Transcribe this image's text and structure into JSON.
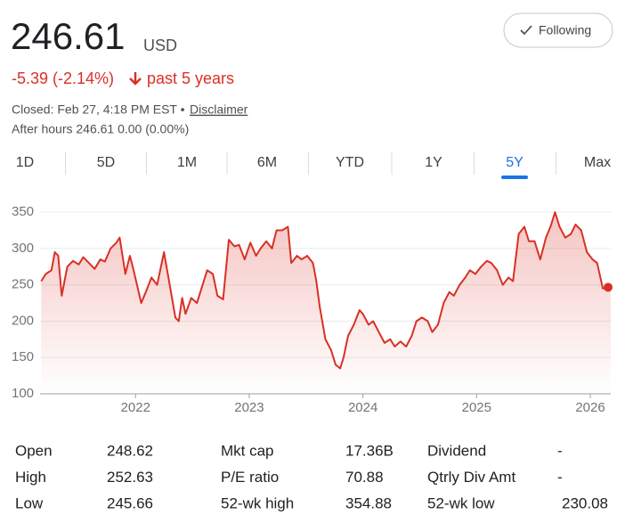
{
  "header": {
    "price": "246.61",
    "currency": "USD",
    "change": "-5.39 (-2.14%)",
    "period": "past 5 years",
    "closed": "Closed: Feb 27, 4:18 PM EST •",
    "disclaimer": "Disclaimer",
    "after_hours": "After hours 246.61 0.00 (0.00%)",
    "button": "Following"
  },
  "tabs": [
    "1D",
    "5D",
    "1M",
    "6M",
    "YTD",
    "1Y",
    "5Y",
    "Max"
  ],
  "selected_tab": 6,
  "chart_data": {
    "type": "line",
    "color": "#d93025",
    "x": [
      2021.17,
      2021.21,
      2021.26,
      2021.29,
      2021.32,
      2021.35,
      2021.4,
      2021.45,
      2021.5,
      2021.54,
      2021.59,
      2021.64,
      2021.69,
      2021.73,
      2021.78,
      2021.83,
      2021.86,
      2021.91,
      2021.95,
      2021.98,
      2022.05,
      2022.09,
      2022.14,
      2022.19,
      2022.25,
      2022.3,
      2022.35,
      2022.38,
      2022.41,
      2022.44,
      2022.49,
      2022.54,
      2022.58,
      2022.63,
      2022.68,
      2022.72,
      2022.77,
      2022.82,
      2022.87,
      2022.91,
      2022.96,
      2023.01,
      2023.06,
      2023.1,
      2023.15,
      2023.2,
      2023.24,
      2023.29,
      2023.34,
      2023.37,
      2023.42,
      2023.46,
      2023.51,
      2023.56,
      2023.59,
      2023.62,
      2023.67,
      2023.72,
      2023.76,
      2023.8,
      2023.83,
      2023.87,
      2023.92,
      2023.97,
      2024.0,
      2024.05,
      2024.09,
      2024.14,
      2024.19,
      2024.24,
      2024.28,
      2024.33,
      2024.38,
      2024.43,
      2024.47,
      2024.52,
      2024.57,
      2024.61,
      2024.66,
      2024.71,
      2024.76,
      2024.8,
      2024.85,
      2024.9,
      2024.94,
      2024.99,
      2025.04,
      2025.09,
      2025.13,
      2025.18,
      2025.23,
      2025.28,
      2025.32,
      2025.37,
      2025.42,
      2025.46,
      2025.51,
      2025.56,
      2025.61,
      2025.65,
      2025.69,
      2025.73,
      2025.78,
      2025.83,
      2025.87,
      2025.92,
      2025.97,
      2026.02,
      2026.06,
      2026.11,
      2026.18
    ],
    "values": [
      255,
      265,
      270,
      295,
      290,
      235,
      275,
      283,
      278,
      288,
      280,
      272,
      285,
      282,
      300,
      308,
      315,
      265,
      290,
      272,
      225,
      240,
      260,
      250,
      295,
      250,
      205,
      200,
      232,
      210,
      232,
      225,
      245,
      270,
      265,
      235,
      230,
      312,
      303,
      305,
      285,
      308,
      290,
      300,
      310,
      300,
      325,
      325,
      330,
      280,
      290,
      285,
      290,
      280,
      255,
      220,
      175,
      160,
      140,
      135,
      150,
      180,
      195,
      215,
      210,
      195,
      200,
      185,
      170,
      175,
      165,
      172,
      165,
      180,
      200,
      205,
      200,
      185,
      195,
      225,
      240,
      235,
      250,
      260,
      270,
      265,
      275,
      283,
      280,
      270,
      250,
      260,
      255,
      320,
      330,
      310,
      310,
      285,
      315,
      330,
      350,
      330,
      315,
      320,
      333,
      325,
      295,
      285,
      280,
      245,
      246.61
    ],
    "xlim": [
      2021.16,
      2026.18
    ],
    "xticks": [
      2022,
      2023,
      2024,
      2025,
      2026
    ],
    "ylim": [
      100,
      360
    ],
    "yticks": [
      100,
      150,
      200,
      250,
      300,
      350
    ],
    "grid": true
  },
  "stats": [
    [
      {
        "label": "Open",
        "value": "248.62"
      },
      {
        "label": "High",
        "value": "252.63"
      },
      {
        "label": "Low",
        "value": "245.66"
      }
    ],
    [
      {
        "label": "Mkt cap",
        "value": "17.36B"
      },
      {
        "label": "P/E ratio",
        "value": "70.88"
      },
      {
        "label": "52-wk high",
        "value": "354.88"
      }
    ],
    [
      {
        "label": "Dividend",
        "value": "-"
      },
      {
        "label": "Qtrly Div Amt",
        "value": "-"
      },
      {
        "label": "52-wk low",
        "value": "230.08"
      }
    ]
  ]
}
